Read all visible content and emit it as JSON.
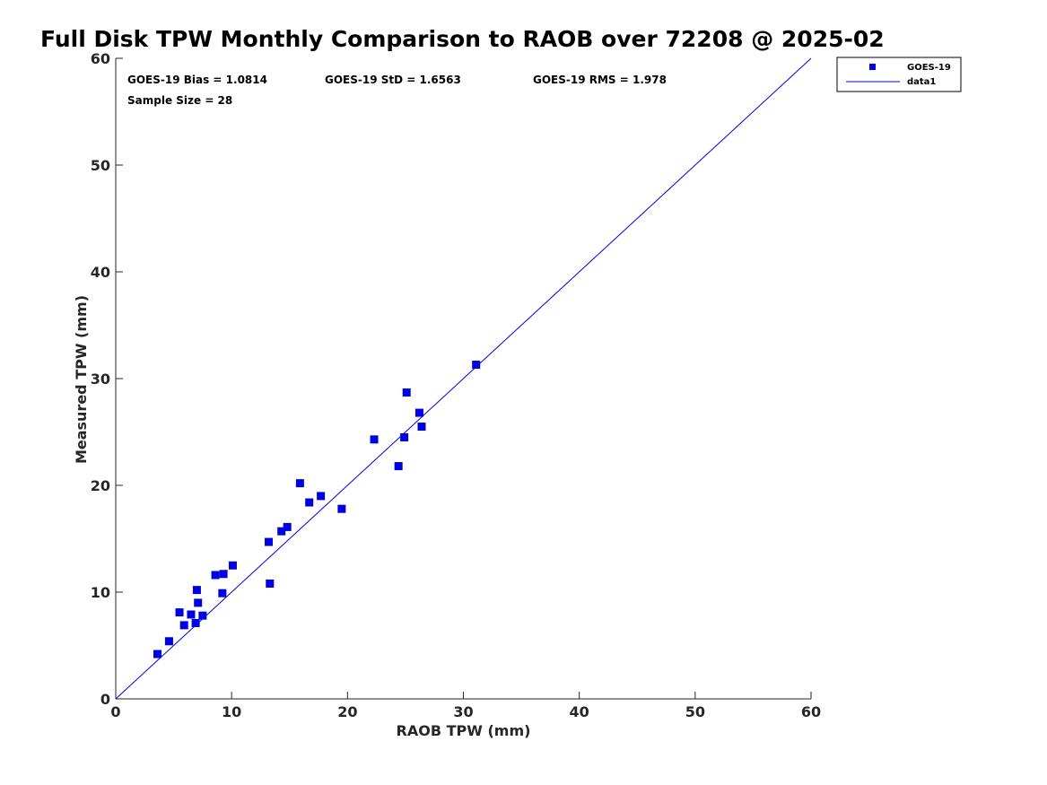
{
  "chart_data": {
    "type": "scatter",
    "title": "Full Disk TPW Monthly Comparison to RAOB over 72208 @ 2025-02",
    "xlabel": "RAOB TPW (mm)",
    "ylabel": "Measured TPW (mm)",
    "xlim": [
      0,
      60
    ],
    "ylim": [
      0,
      60
    ],
    "xticks": [
      0,
      10,
      20,
      30,
      40,
      50,
      60
    ],
    "yticks": [
      0,
      10,
      20,
      30,
      40,
      50,
      60
    ],
    "grid": false,
    "legend_position": "top-right, outside plot",
    "stats": {
      "bias": "GOES-19 Bias = 1.0814",
      "std": "GOES-19 StD = 1.6563",
      "rms": "GOES-19 RMS = 1.978",
      "sample": "Sample Size = 28"
    },
    "series": [
      {
        "name": "GOES-19",
        "kind": "scatter",
        "marker": "square",
        "color": "#0000e0",
        "points": [
          [
            3.6,
            4.2
          ],
          [
            4.6,
            5.4
          ],
          [
            5.5,
            8.1
          ],
          [
            5.9,
            6.9
          ],
          [
            6.5,
            7.9
          ],
          [
            6.9,
            7.1
          ],
          [
            7.0,
            10.2
          ],
          [
            7.1,
            9.0
          ],
          [
            7.5,
            7.8
          ],
          [
            8.6,
            11.6
          ],
          [
            9.2,
            9.9
          ],
          [
            9.3,
            11.7
          ],
          [
            10.1,
            12.5
          ],
          [
            13.2,
            14.7
          ],
          [
            13.3,
            10.8
          ],
          [
            14.3,
            15.7
          ],
          [
            14.8,
            16.1
          ],
          [
            15.9,
            20.2
          ],
          [
            16.7,
            18.4
          ],
          [
            17.7,
            19.0
          ],
          [
            19.5,
            17.8
          ],
          [
            22.3,
            24.3
          ],
          [
            24.4,
            21.8
          ],
          [
            24.9,
            24.5
          ],
          [
            25.1,
            28.7
          ],
          [
            26.2,
            26.8
          ],
          [
            26.4,
            25.5
          ],
          [
            31.1,
            31.3
          ]
        ]
      },
      {
        "name": "data1",
        "kind": "line",
        "color": "#0000e0",
        "points": [
          [
            0,
            0
          ],
          [
            60,
            60
          ]
        ]
      }
    ]
  }
}
